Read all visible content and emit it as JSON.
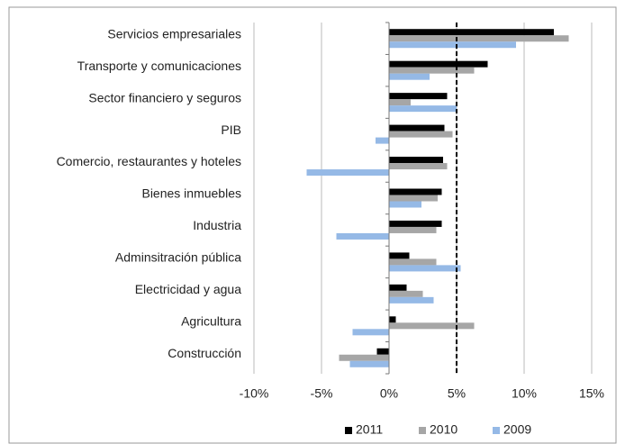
{
  "chart_data": {
    "type": "hbar",
    "categories": [
      "Servicios empresariales",
      "Transporte y comunicaciones",
      "Sector financiero y seguros",
      "PIB",
      "Comercio, restaurantes y hoteles",
      "Bienes inmuebles",
      "Industria",
      "Adminsitración pública",
      "Electricidad y agua",
      "Agricultura",
      "Construcción"
    ],
    "series": [
      {
        "name": "2011",
        "color": "#000000",
        "values": [
          12.2,
          7.3,
          4.3,
          4.1,
          4.0,
          3.9,
          3.9,
          1.5,
          1.3,
          0.5,
          -0.9
        ]
      },
      {
        "name": "2010",
        "color": "#a6a6a6",
        "values": [
          13.3,
          6.3,
          1.6,
          4.7,
          4.3,
          3.6,
          3.5,
          3.5,
          2.5,
          6.3,
          -3.7
        ]
      },
      {
        "name": "2009",
        "color": "#95b9e6",
        "values": [
          9.4,
          3.0,
          5.0,
          -1.0,
          -6.1,
          2.4,
          -3.9,
          5.3,
          3.3,
          -2.7,
          -2.9
        ]
      }
    ],
    "xlim": [
      -10,
      15
    ],
    "xticks": [
      {
        "value": -10,
        "label": "-10%"
      },
      {
        "value": -5,
        "label": "-5%"
      },
      {
        "value": 0,
        "label": "0%"
      },
      {
        "value": 5,
        "label": "5%"
      },
      {
        "value": 10,
        "label": "10%"
      },
      {
        "value": 15,
        "label": "15%"
      }
    ],
    "reference_line": 5,
    "grid": true,
    "legend": "bottom"
  }
}
